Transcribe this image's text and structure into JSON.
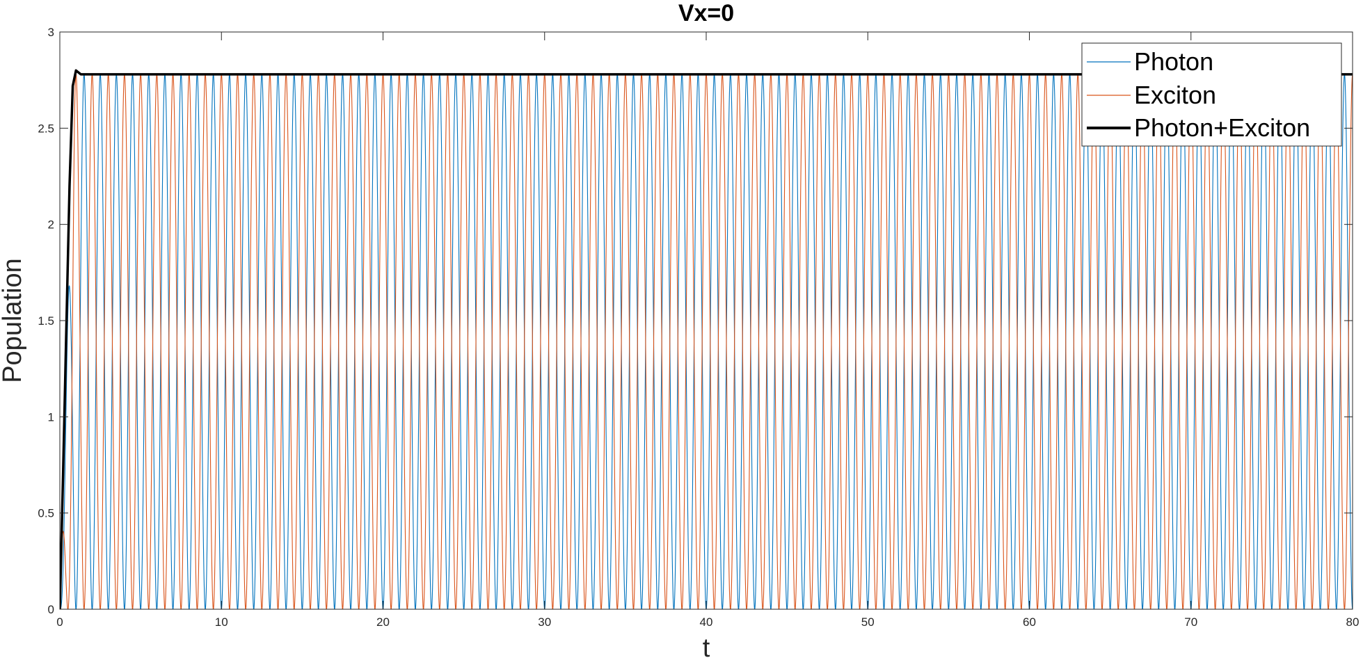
{
  "chart_data": {
    "type": "line",
    "title": "Vx=0",
    "xlabel": "t",
    "ylabel": "Population",
    "xlim": [
      0,
      80
    ],
    "ylim": [
      0,
      3
    ],
    "xticks": [
      0,
      10,
      20,
      30,
      40,
      50,
      60,
      70,
      80
    ],
    "xtick_labels": [
      "0",
      "10",
      "20",
      "30",
      "40",
      "50",
      "60",
      "70",
      "80"
    ],
    "yticks": [
      0,
      0.5,
      1,
      1.5,
      2,
      2.5,
      3
    ],
    "ytick_labels": [
      "0",
      "0.5",
      "1",
      "1.5",
      "2",
      "2.5",
      "3"
    ],
    "grid": false,
    "legend_position": "top-right",
    "series": [
      {
        "name": "Photon",
        "color": "#0072BD",
        "line_width": "thin",
        "description_values": {
          "rise": [
            [
              0,
              0
            ],
            [
              0.4,
              1.4
            ],
            [
              0.9,
              2.78
            ]
          ],
          "oscillation_min": 0,
          "oscillation_max": 2.78,
          "oscillation_period": 1.0
        }
      },
      {
        "name": "Exciton",
        "color": "#D95319",
        "line_width": "thin",
        "description_values": {
          "oscillation_min": 0,
          "oscillation_max": 2.78,
          "oscillation_period": 1.0
        }
      },
      {
        "name": "Photon+Exciton",
        "color": "#000000",
        "line_width": "thick",
        "points": [
          [
            0,
            0
          ],
          [
            0.2,
            0.7
          ],
          [
            0.4,
            1.45
          ],
          [
            0.6,
            2.2
          ],
          [
            0.8,
            2.72
          ],
          [
            1.0,
            2.8
          ],
          [
            1.3,
            2.78
          ],
          [
            80,
            2.78
          ]
        ]
      }
    ]
  }
}
